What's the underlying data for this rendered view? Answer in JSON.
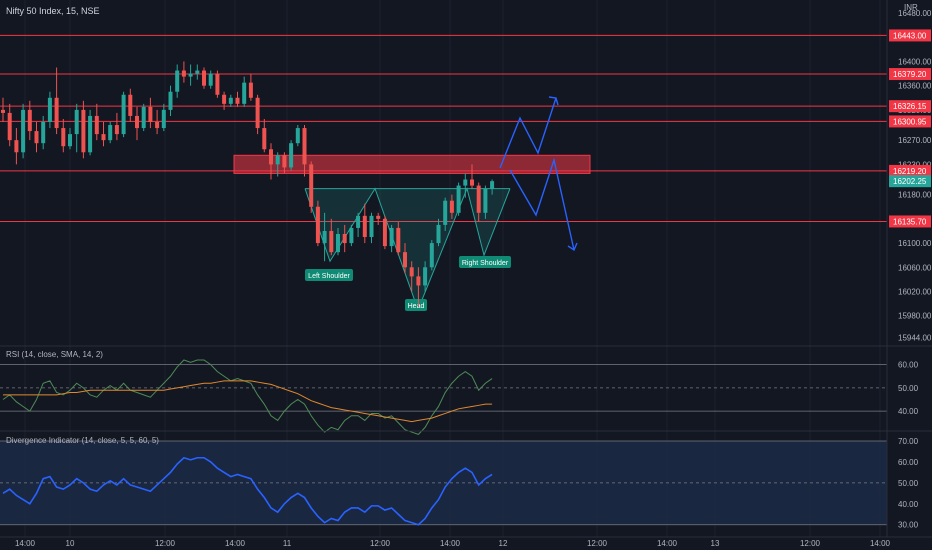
{
  "header": {
    "title": "Nifty 50 Index, 15, NSE",
    "currency": "INR"
  },
  "colors": {
    "background": "#131722",
    "up": "#26a69a",
    "down": "#ef5350",
    "level_line": "#f23645",
    "rsi_line": "#4e8c56",
    "rsi_ma": "#e0892e",
    "div_line": "#2962ff",
    "projection": "#2962ff"
  },
  "chart_data": [
    {
      "type": "candlestick",
      "symbol": "Nifty 50 Index",
      "interval": "15",
      "exchange": "NSE",
      "ylim": [
        15930,
        16485
      ],
      "price_axis_ticks": [
        16480.0,
        16440.0,
        16400.0,
        16360.0,
        16320.0,
        16270.0,
        16230.0,
        16180.0,
        16140.0,
        16100.0,
        16060.0,
        16020.0,
        15980.0,
        15944.0
      ],
      "time_axis_ticks": [
        "14:00",
        "10",
        "12:00",
        "14:00",
        "11",
        "12:00",
        "14:00",
        "12",
        "12:00",
        "14:00",
        "13",
        "12:00",
        "14:00"
      ],
      "ohlc": [
        [
          16320,
          16340,
          16300,
          16315
        ],
        [
          16315,
          16330,
          16260,
          16270
        ],
        [
          16270,
          16290,
          16230,
          16250
        ],
        [
          16250,
          16330,
          16240,
          16320
        ],
        [
          16320,
          16335,
          16270,
          16285
        ],
        [
          16285,
          16300,
          16250,
          16265
        ],
        [
          16265,
          16310,
          16255,
          16300
        ],
        [
          16300,
          16350,
          16290,
          16340
        ],
        [
          16340,
          16390,
          16280,
          16290
        ],
        [
          16290,
          16305,
          16250,
          16260
        ],
        [
          16260,
          16290,
          16255,
          16280
        ],
        [
          16280,
          16330,
          16250,
          16320
        ],
        [
          16320,
          16335,
          16240,
          16250
        ],
        [
          16250,
          16320,
          16245,
          16310
        ],
        [
          16310,
          16330,
          16270,
          16280
        ],
        [
          16280,
          16300,
          16260,
          16270
        ],
        [
          16270,
          16300,
          16265,
          16295
        ],
        [
          16295,
          16315,
          16270,
          16280
        ],
        [
          16280,
          16350,
          16275,
          16345
        ],
        [
          16345,
          16355,
          16300,
          16310
        ],
        [
          16310,
          16325,
          16270,
          16290
        ],
        [
          16290,
          16330,
          16285,
          16325
        ],
        [
          16325,
          16340,
          16290,
          16300
        ],
        [
          16300,
          16320,
          16280,
          16290
        ],
        [
          16290,
          16330,
          16285,
          16320
        ],
        [
          16320,
          16360,
          16310,
          16350
        ],
        [
          16350,
          16395,
          16340,
          16385
        ],
        [
          16385,
          16400,
          16365,
          16375
        ],
        [
          16375,
          16395,
          16360,
          16380
        ],
        [
          16380,
          16395,
          16370,
          16385
        ],
        [
          16385,
          16390,
          16355,
          16360
        ],
        [
          16360,
          16385,
          16355,
          16380
        ],
        [
          16380,
          16385,
          16340,
          16345
        ],
        [
          16345,
          16350,
          16320,
          16330
        ],
        [
          16330,
          16345,
          16325,
          16340
        ],
        [
          16340,
          16350,
          16325,
          16330
        ],
        [
          16330,
          16375,
          16325,
          16365
        ],
        [
          16365,
          16380,
          16335,
          16340
        ],
        [
          16340,
          16345,
          16280,
          16290
        ],
        [
          16290,
          16305,
          16250,
          16255
        ],
        [
          16255,
          16265,
          16205,
          16230
        ],
        [
          16230,
          16250,
          16210,
          16245
        ],
        [
          16245,
          16250,
          16215,
          16225
        ],
        [
          16225,
          16270,
          16220,
          16265
        ],
        [
          16265,
          16295,
          16260,
          16290
        ],
        [
          16290,
          16295,
          16210,
          16230
        ],
        [
          16230,
          16235,
          16150,
          16160
        ],
        [
          16160,
          16170,
          16095,
          16100
        ],
        [
          16100,
          16150,
          16070,
          16120
        ],
        [
          16120,
          16140,
          16080,
          16085
        ],
        [
          16085,
          16125,
          16080,
          16115
        ],
        [
          16115,
          16130,
          16085,
          16100
        ],
        [
          16100,
          16130,
          16095,
          16125
        ],
        [
          16125,
          16150,
          16110,
          16145
        ],
        [
          16145,
          16165,
          16100,
          16110
        ],
        [
          16110,
          16150,
          16100,
          16145
        ],
        [
          16145,
          16150,
          16130,
          16140
        ],
        [
          16140,
          16145,
          16090,
          16095
        ],
        [
          16095,
          16130,
          16085,
          16125
        ],
        [
          16125,
          16135,
          16080,
          16085
        ],
        [
          16085,
          16100,
          16050,
          16060
        ],
        [
          16060,
          16070,
          16020,
          16045
        ],
        [
          16045,
          16060,
          15995,
          16030
        ],
        [
          16030,
          16070,
          16020,
          16060
        ],
        [
          16060,
          16105,
          16055,
          16100
        ],
        [
          16100,
          16140,
          16095,
          16130
        ],
        [
          16130,
          16175,
          16120,
          16170
        ],
        [
          16170,
          16180,
          16140,
          16150
        ],
        [
          16150,
          16200,
          16145,
          16195
        ],
        [
          16195,
          16215,
          16175,
          16205
        ],
        [
          16205,
          16230,
          16190,
          16195
        ],
        [
          16195,
          16200,
          16135,
          16150
        ],
        [
          16150,
          16195,
          16140,
          16190
        ],
        [
          16190,
          16205,
          16180,
          16202.25
        ]
      ],
      "horizontal_levels": [
        16443.0,
        16379.2,
        16326.15,
        16300.95,
        16219.2,
        16135.7
      ],
      "current_price": "16202.25",
      "level_labels": [
        "16443.00",
        "16379.20",
        "16326.15",
        "16300.95",
        "16219.20",
        "16135.70"
      ],
      "resistance_zone": [
        16215,
        16245
      ],
      "pattern": {
        "name": "Inverse Head and Shoulders",
        "labels": [
          "Left Shoulder",
          "Head",
          "Right Shoulder"
        ]
      }
    },
    {
      "type": "line",
      "title": "RSI (14, close, SMA, 14, 2)",
      "ylim": [
        25,
        65
      ],
      "axis_ticks": [
        "60.00",
        "50.00",
        "40.00"
      ],
      "bands": [
        60,
        50,
        40
      ],
      "series": [
        {
          "name": "RSI",
          "values": [
            45,
            47,
            44,
            42,
            40,
            45,
            52,
            53,
            48,
            47,
            49,
            52,
            50,
            47,
            46,
            49,
            51,
            49,
            52,
            49,
            48,
            47,
            46,
            49,
            52,
            55,
            59,
            62,
            61,
            62,
            62,
            60,
            57,
            55,
            53,
            54,
            53,
            52,
            47,
            43,
            38,
            36,
            40,
            43,
            45,
            43,
            38,
            34,
            31,
            33,
            32,
            36,
            38,
            38,
            36,
            39,
            39,
            37,
            38,
            35,
            32,
            31,
            30,
            33,
            38,
            42,
            48,
            52,
            55,
            57,
            55,
            49,
            52,
            54
          ]
        },
        {
          "name": "RSI-based MA",
          "values": [
            47,
            47,
            47,
            47,
            47,
            47,
            47,
            47,
            47,
            47.5,
            48,
            48,
            48.5,
            49,
            49,
            49,
            49,
            49,
            49,
            49,
            49,
            49,
            49,
            49,
            49,
            49.5,
            50,
            50.5,
            51,
            51.5,
            52,
            52,
            52.5,
            53,
            53,
            53,
            53,
            53,
            52.5,
            52,
            51.5,
            50.5,
            49.5,
            48.5,
            47.5,
            46,
            44.5,
            43.5,
            42.5,
            41.5,
            41,
            40.5,
            40,
            39.5,
            39,
            38.5,
            38,
            37.5,
            37,
            36.5,
            36,
            35.5,
            36,
            36.5,
            37,
            38,
            39,
            40,
            41,
            41.5,
            42,
            42.5,
            43,
            43
          ]
        }
      ]
    },
    {
      "type": "line",
      "title": "Divergence Indicator (14, close, 5, 5, 60, 5)",
      "ylim": [
        27,
        70
      ],
      "axis_ticks": [
        "70.00",
        "60.00",
        "50.00",
        "40.00",
        "30.00"
      ],
      "bands": [
        70,
        50,
        30
      ],
      "series": [
        {
          "name": "RSI",
          "values": [
            45,
            47,
            44,
            42,
            40,
            45,
            52,
            53,
            48,
            47,
            49,
            52,
            50,
            47,
            46,
            49,
            51,
            49,
            52,
            49,
            48,
            47,
            46,
            49,
            52,
            55,
            59,
            62,
            61,
            62,
            62,
            60,
            57,
            55,
            53,
            54,
            53,
            52,
            47,
            43,
            38,
            36,
            40,
            43,
            45,
            43,
            38,
            34,
            31,
            33,
            32,
            36,
            38,
            38,
            36,
            39,
            39,
            37,
            38,
            35,
            32,
            31,
            30,
            33,
            38,
            42,
            48,
            52,
            55,
            57,
            55,
            49,
            52,
            54
          ]
        }
      ]
    }
  ]
}
